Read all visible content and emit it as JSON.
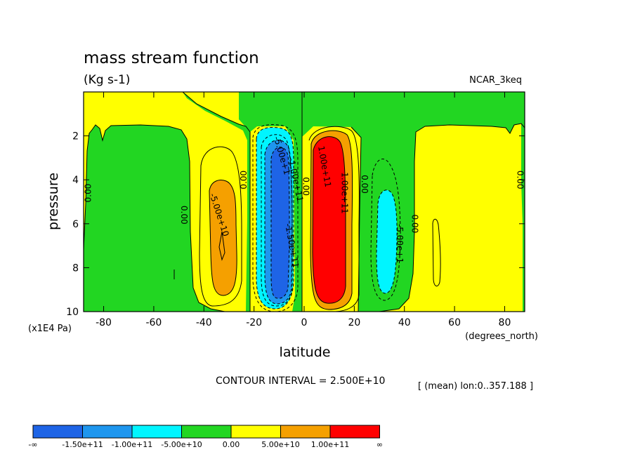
{
  "colors": {
    "neg_inf_to_m150": "#1e64e6",
    "m150_to_m100": "#1e96ee",
    "m100_to_m50": "#00f5ff",
    "m50_to_0": "#22d622",
    "zero_to_50": "#ffff00",
    "p50_to_p100": "#f5a000",
    "p100_to_inf": "#ff0000"
  },
  "chart_data": {
    "type": "contour",
    "title": "mass stream function",
    "units": "(Kg s-1)",
    "dataset": "NCAR_3keq",
    "xlabel": "latitude",
    "x_units": "(degrees_north)",
    "ylabel": "pressure",
    "y_units": "(x1E4 Pa)",
    "xlim": [
      -88,
      88
    ],
    "ylim": [
      0,
      10
    ],
    "y_reversed": true,
    "x_ticks": [
      "-80",
      "-60",
      "-40",
      "-20",
      "0",
      "20",
      "40",
      "60",
      "80"
    ],
    "x_tick_values": [
      -80,
      -60,
      -40,
      -20,
      0,
      20,
      40,
      60,
      80
    ],
    "y_ticks": [
      "2",
      "4",
      "6",
      "8",
      "10"
    ],
    "y_tick_values": [
      2,
      4,
      6,
      8,
      10
    ],
    "contour_interval_text": "CONTOUR INTERVAL = 2.500E+10",
    "mean_note": "[ (mean) lon:0..357.188 ]",
    "contour_labels": [
      {
        "text": "0.00",
        "lat": -86,
        "p": 4.6,
        "angle": -90
      },
      {
        "text": "0.00",
        "lat": -48,
        "p": 5.6,
        "angle": 90
      },
      {
        "text": "-5.00e+10",
        "lat": -34,
        "p": 5.6,
        "angle": 72
      },
      {
        "text": "0.00",
        "lat": -24,
        "p": 4.0,
        "angle": -90
      },
      {
        "text": "-5.00e+1",
        "lat": -9,
        "p": 2.9,
        "angle": 74
      },
      {
        "text": "-1.00e+11",
        "lat": -3.5,
        "p": 4.0,
        "angle": 78
      },
      {
        "text": "-1.50e+11",
        "lat": -5,
        "p": 7.0,
        "angle": 80
      },
      {
        "text": "0.00",
        "lat": 0.5,
        "p": 4.3,
        "angle": 90
      },
      {
        "text": "1.00e+11",
        "lat": 8,
        "p": 3.4,
        "angle": 80
      },
      {
        "text": "1.00e+11",
        "lat": 16,
        "p": 4.6,
        "angle": 90
      },
      {
        "text": "0.00",
        "lat": 24,
        "p": 4.2,
        "angle": 90
      },
      {
        "text": "-5.00e+1",
        "lat": 38,
        "p": 6.9,
        "angle": 90
      },
      {
        "text": "0.00",
        "lat": 44,
        "p": 6.0,
        "angle": 90
      },
      {
        "text": "0.00",
        "lat": 86,
        "p": 4.0,
        "angle": 90
      }
    ],
    "colorbar": {
      "boundaries": [
        "-∞",
        "-1.50e+11",
        "-1.00e+11",
        "-5.00e+10",
        "0.00",
        "5.00e+10",
        "1.00e+11",
        "∞"
      ],
      "colors": [
        "#1e64e6",
        "#1e96ee",
        "#00f5ff",
        "#22d622",
        "#ffff00",
        "#f5a000",
        "#ff0000"
      ]
    }
  }
}
